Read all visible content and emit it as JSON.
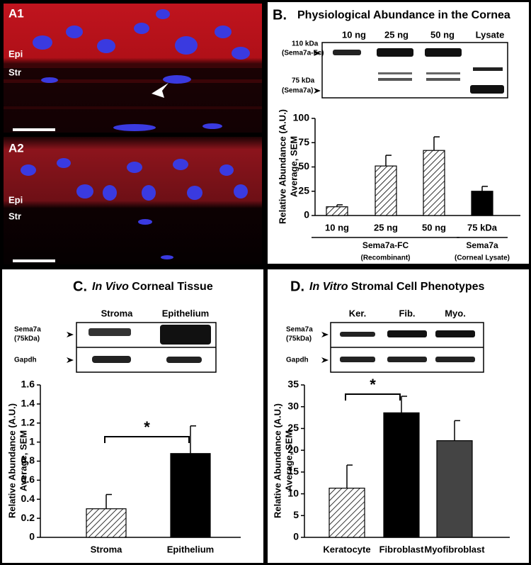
{
  "panel_a": [
    {
      "label": "A1",
      "epi": "Epi",
      "str": "Str"
    },
    {
      "label": "A2",
      "epi": "Epi",
      "str": "Str"
    }
  ],
  "chart_data": [
    {
      "type": "bar",
      "panel": "B.",
      "title": "Physiological Abundance in the Cornea",
      "blot": {
        "lanes": [
          "10 ng",
          "25 ng",
          "50 ng",
          "Lysate"
        ],
        "markers": [
          [
            "110 kDa",
            "(Sema7a-Fc)"
          ],
          [
            "75 kDa",
            "(Sema7a)"
          ]
        ]
      },
      "ylabel": [
        "Relative Abundance (A.U.)",
        "Average, SEM"
      ],
      "categories": [
        "10 ng",
        "25 ng",
        "50 ng",
        "75 kDa"
      ],
      "values": [
        9,
        51,
        67,
        25
      ],
      "errors": [
        2,
        11,
        14,
        5
      ],
      "hatched": [
        true,
        true,
        true,
        false
      ],
      "colors": [
        "#ffffff",
        "#ffffff",
        "#ffffff",
        "#000000"
      ],
      "groups": [
        {
          "name": "Sema7a-FC",
          "note": "(Recombinant)",
          "span": [
            0,
            2
          ]
        },
        {
          "name": "Sema7a",
          "note": "(Corneal Lysate)",
          "span": [
            3,
            3
          ]
        }
      ],
      "ylim": [
        0,
        100
      ],
      "yticks": [
        0,
        25,
        50,
        75,
        100
      ]
    },
    {
      "type": "bar",
      "panel": "C.",
      "title_italic": "In Vivo",
      "title": " Corneal Tissue",
      "blot": {
        "lanes": [
          "Stroma",
          "Epithelium"
        ],
        "rows": [
          [
            "Sema7a",
            "(75kDa)"
          ],
          [
            "Gapdh"
          ]
        ]
      },
      "ylabel": [
        "Relative Abundance (A.U.)",
        "Average, SEM"
      ],
      "categories": [
        "Stroma",
        "Epithelium"
      ],
      "values": [
        0.3,
        0.88
      ],
      "errors": [
        0.15,
        0.29
      ],
      "hatched": [
        true,
        false
      ],
      "colors": [
        "#ffffff",
        "#000000"
      ],
      "significance": {
        "between": [
          0,
          1
        ],
        "label": "*"
      },
      "ylim": [
        0,
        1.6
      ],
      "yticks": [
        0,
        0.2,
        0.4,
        0.6,
        0.8,
        1,
        1.2,
        1.4,
        1.6
      ]
    },
    {
      "type": "bar",
      "panel": "D.",
      "title_italic": "In Vitro",
      "title": " Stromal Cell Phenotypes",
      "blot": {
        "lanes": [
          "Ker.",
          "Fib.",
          "Myo."
        ],
        "rows": [
          [
            "Sema7a",
            "(75kDa)"
          ],
          [
            "Gapdh"
          ]
        ]
      },
      "ylabel": [
        "Relative Abundance (A.U.)",
        "Average, SEM"
      ],
      "categories": [
        "Keratocyte",
        "Fibroblast",
        "Myofibroblast"
      ],
      "values": [
        11.3,
        28.6,
        22.2
      ],
      "errors": [
        5.3,
        3.8,
        4.6
      ],
      "hatched": [
        true,
        false,
        false
      ],
      "colors": [
        "#ffffff",
        "#000000",
        "#444444"
      ],
      "significance": {
        "between": [
          0,
          1
        ],
        "label": "*"
      },
      "ylim": [
        0,
        35
      ],
      "yticks": [
        0,
        5,
        10,
        15,
        20,
        25,
        30,
        35
      ]
    }
  ]
}
